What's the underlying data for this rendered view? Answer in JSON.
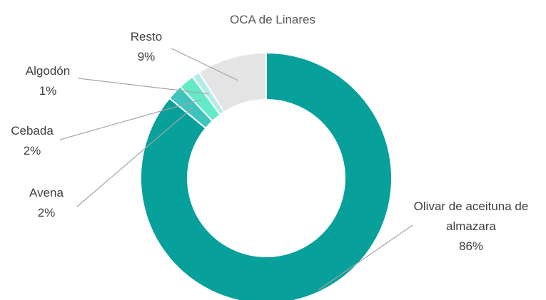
{
  "chart_data": {
    "type": "donut",
    "title": "OCA de Linares",
    "categories": [
      "Olivar de aceituna de almazara",
      "Avena",
      "Cebada",
      "Algodón",
      "Resto"
    ],
    "values": [
      86,
      2,
      2,
      1,
      9
    ],
    "value_labels": [
      "86%",
      "2%",
      "2%",
      "1%",
      "9%"
    ],
    "colors": [
      "#07a09a",
      "#3fc3bd",
      "#63eac7",
      "#b4ede8",
      "#e4e4e4"
    ]
  }
}
